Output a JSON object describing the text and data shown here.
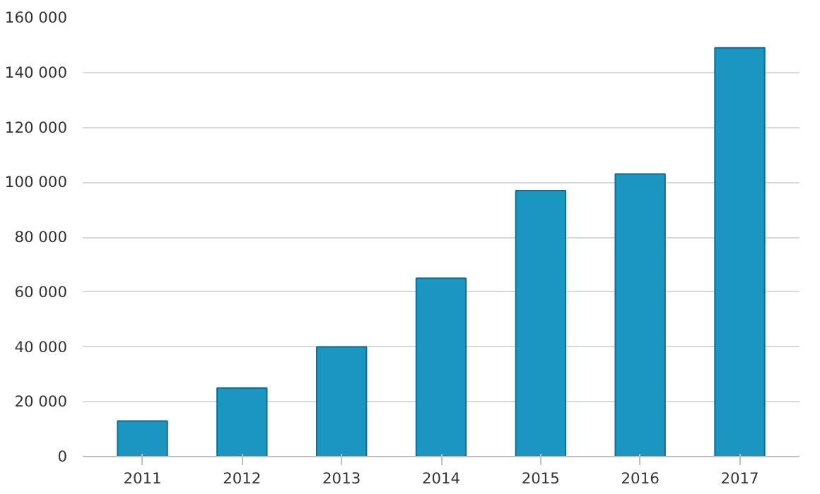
{
  "chart_data": {
    "type": "bar",
    "categories": [
      "2011",
      "2012",
      "2013",
      "2014",
      "2015",
      "2016",
      "2017"
    ],
    "values": [
      13000,
      25000,
      40000,
      65000,
      97000,
      103000,
      149000
    ],
    "color": "#1a96c0",
    "ylim": [
      0,
      160000
    ],
    "yticks": [
      {
        "value": 0,
        "label": "0"
      },
      {
        "value": 20000,
        "label": "20 000"
      },
      {
        "value": 40000,
        "label": "40 000"
      },
      {
        "value": 60000,
        "label": "60 000"
      },
      {
        "value": 80000,
        "label": "80 000"
      },
      {
        "value": 100000,
        "label": "100 000"
      },
      {
        "value": 120000,
        "label": "120 000"
      },
      {
        "value": 140000,
        "label": "140 000"
      },
      {
        "value": 160000,
        "label": "160 000"
      }
    ],
    "grid": "y"
  }
}
